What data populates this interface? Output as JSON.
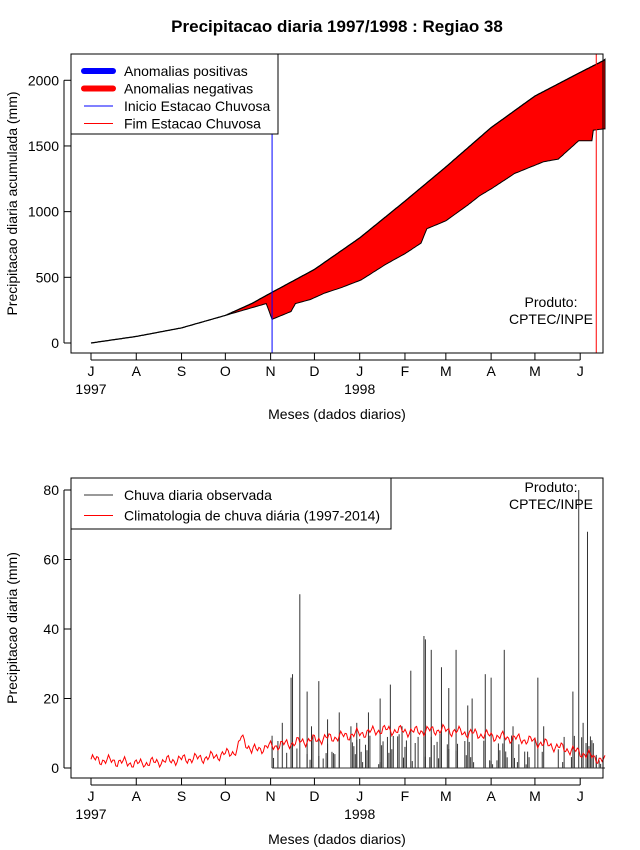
{
  "chart_data": [
    {
      "type": "area",
      "title": "Precipitacao diaria 1997/1998 : Regiao 38",
      "xlabel": "Meses (dados diarios)",
      "ylabel": "Precipitacao diaria acumulada (mm)",
      "ylim": [
        0,
        2200
      ],
      "yticks": [
        0,
        500,
        1000,
        1500,
        2000
      ],
      "xticks": [
        "J",
        "A",
        "S",
        "O",
        "N",
        "D",
        "J",
        "F",
        "M",
        "A",
        "M",
        "J"
      ],
      "year_labels": [
        {
          "tick_index": 0,
          "label": "1997"
        },
        {
          "tick_index": 6,
          "label": "1998"
        }
      ],
      "credit": [
        "Produto:",
        "CPTEC/INPE"
      ],
      "legend": {
        "position": "top-left",
        "entries": [
          {
            "label": "Anomalias positivas",
            "color": "#0000ff",
            "style": "thick"
          },
          {
            "label": "Anomalias negativas",
            "color": "#ff0000",
            "style": "thick"
          },
          {
            "label": "Inicio Estacao Chuvosa",
            "color": "#0000ff",
            "style": "thin"
          },
          {
            "label": "Fim Estacao Chuvosa",
            "color": "#ff0000",
            "style": "thin"
          }
        ]
      },
      "climatology_cumulative": {
        "day": [
          0,
          31,
          62,
          92,
          110,
          123,
          153,
          184,
          215,
          243,
          274,
          304,
          335,
          351,
          352
        ],
        "mm": [
          0,
          50,
          115,
          210,
          300,
          380,
          560,
          800,
          1080,
          1340,
          1640,
          1880,
          2060,
          2150,
          2160
        ]
      },
      "observed_cumulative": {
        "day": [
          0,
          31,
          62,
          92,
          120,
          124,
          137,
          140,
          150,
          160,
          171,
          185,
          202,
          215,
          226,
          230,
          243,
          258,
          266,
          275,
          290,
          310,
          320,
          334,
          343,
          344,
          351,
          352
        ],
        "mm": [
          0,
          50,
          115,
          210,
          300,
          180,
          240,
          300,
          330,
          380,
          420,
          480,
          600,
          680,
          760,
          870,
          930,
          1050,
          1120,
          1180,
          1290,
          1380,
          1400,
          1540,
          1540,
          1620,
          1630,
          1630
        ]
      },
      "rainy_season_start_day": 124,
      "rainy_season_end_day": 346
    },
    {
      "type": "line",
      "xlabel": "Meses (dados diarios)",
      "ylabel": "Precipitacao diaria (mm)",
      "ylim": [
        0,
        80
      ],
      "yticks": [
        0,
        20,
        40,
        60,
        80
      ],
      "xticks": [
        "J",
        "A",
        "S",
        "O",
        "N",
        "D",
        "J",
        "F",
        "M",
        "A",
        "M",
        "J"
      ],
      "year_labels": [
        {
          "tick_index": 0,
          "label": "1997"
        },
        {
          "tick_index": 6,
          "label": "1998"
        }
      ],
      "credit": [
        "Produto:",
        "CPTEC/INPE"
      ],
      "legend": {
        "position": "top-left",
        "entries": [
          {
            "label": "Chuva diaria observada",
            "color": "#333333"
          },
          {
            "label": "Climatologia de chuva diária (1997-2014)",
            "color": "#ff0000"
          }
        ]
      },
      "observed_peaks": {
        "day": [
          124,
          131,
          137,
          138,
          143,
          148,
          151,
          156,
          162,
          170,
          178,
          182,
          190,
          198,
          205,
          213,
          219,
          228,
          229,
          233,
          240,
          245,
          250,
          258,
          261,
          270,
          274,
          283,
          289,
          306,
          310,
          330,
          334,
          337,
          340,
          343,
          346
        ],
        "mm": [
          8,
          13,
          26,
          27,
          50,
          22,
          12,
          25,
          14,
          16,
          12,
          13,
          16,
          20,
          24,
          12,
          28,
          38,
          37,
          34,
          29,
          23,
          34,
          18,
          20,
          27,
          26,
          34,
          12,
          26,
          12,
          22,
          80,
          13,
          68,
          8,
          3
        ]
      },
      "climatology": {
        "day": [
          0,
          15,
          31,
          40,
          62,
          80,
          92,
          100,
          103,
          110,
          120,
          135,
          150,
          170,
          200,
          220,
          240,
          260,
          280,
          300,
          320,
          335,
          345,
          352
        ],
        "mm": [
          2.5,
          2,
          1.2,
          1.5,
          2.5,
          3,
          4,
          5,
          9,
          5,
          6,
          7,
          8,
          9,
          11,
          10.5,
          11,
          10,
          9,
          8,
          6,
          4.5,
          3,
          2
        ]
      }
    }
  ]
}
